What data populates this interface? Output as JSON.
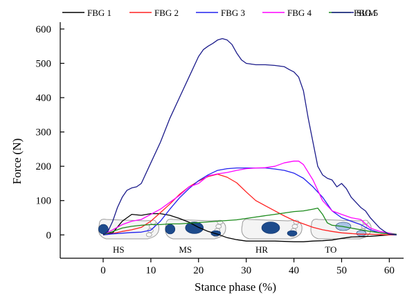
{
  "chart_data": {
    "type": "line",
    "title": "",
    "xlabel": "Stance phase (%)",
    "ylabel": "Force (N)",
    "xlim": [
      -9,
      63
    ],
    "ylim": [
      -68,
      620
    ],
    "xticks": [
      0,
      10,
      20,
      30,
      40,
      50,
      60
    ],
    "yticks": [
      0,
      100,
      200,
      300,
      400,
      500,
      600
    ],
    "grid": false,
    "legend_position": "top",
    "series": [
      {
        "name": "FBG 1",
        "color": "#000000",
        "points": [
          [
            0,
            2
          ],
          [
            2,
            6
          ],
          [
            4,
            40
          ],
          [
            6,
            60
          ],
          [
            8,
            57
          ],
          [
            10,
            62
          ],
          [
            12,
            62
          ],
          [
            14,
            57
          ],
          [
            16,
            48
          ],
          [
            18,
            37
          ],
          [
            20,
            22
          ],
          [
            22,
            10
          ],
          [
            24,
            2
          ],
          [
            26,
            -8
          ],
          [
            28,
            -14
          ],
          [
            30,
            -18
          ],
          [
            32,
            -18
          ],
          [
            34,
            -18
          ],
          [
            36,
            -18
          ],
          [
            38,
            -19
          ],
          [
            40,
            -20
          ],
          [
            42,
            -20
          ],
          [
            44,
            -18
          ],
          [
            46,
            -17
          ],
          [
            48,
            -15
          ],
          [
            50,
            -10
          ],
          [
            52,
            -6
          ],
          [
            54,
            -5
          ],
          [
            56,
            -4
          ],
          [
            58,
            -2
          ],
          [
            60,
            0
          ],
          [
            61.5,
            0
          ]
        ]
      },
      {
        "name": "FBG 2",
        "color": "#ff2020",
        "points": [
          [
            0,
            0
          ],
          [
            2,
            4
          ],
          [
            4,
            10
          ],
          [
            6,
            15
          ],
          [
            8,
            22
          ],
          [
            10,
            40
          ],
          [
            12,
            65
          ],
          [
            14,
            90
          ],
          [
            16,
            118
          ],
          [
            18,
            140
          ],
          [
            20,
            157
          ],
          [
            22,
            170
          ],
          [
            24,
            177
          ],
          [
            26,
            168
          ],
          [
            28,
            152
          ],
          [
            30,
            125
          ],
          [
            32,
            100
          ],
          [
            34,
            85
          ],
          [
            36,
            70
          ],
          [
            38,
            55
          ],
          [
            40,
            42
          ],
          [
            42,
            32
          ],
          [
            44,
            22
          ],
          [
            46,
            15
          ],
          [
            48,
            10
          ],
          [
            50,
            6
          ],
          [
            52,
            4
          ],
          [
            54,
            2
          ],
          [
            56,
            2
          ],
          [
            58,
            1
          ],
          [
            60,
            0
          ],
          [
            61.5,
            0
          ]
        ]
      },
      {
        "name": "FBG 3",
        "color": "#2020ee",
        "points": [
          [
            0,
            0
          ],
          [
            2,
            3
          ],
          [
            4,
            5
          ],
          [
            6,
            7
          ],
          [
            8,
            8
          ],
          [
            10,
            14
          ],
          [
            12,
            40
          ],
          [
            14,
            75
          ],
          [
            16,
            108
          ],
          [
            18,
            135
          ],
          [
            20,
            158
          ],
          [
            22,
            175
          ],
          [
            24,
            188
          ],
          [
            26,
            193
          ],
          [
            28,
            195
          ],
          [
            30,
            195
          ],
          [
            32,
            195
          ],
          [
            34,
            195
          ],
          [
            36,
            192
          ],
          [
            38,
            188
          ],
          [
            40,
            180
          ],
          [
            42,
            165
          ],
          [
            44,
            140
          ],
          [
            46,
            110
          ],
          [
            48,
            70
          ],
          [
            50,
            50
          ],
          [
            52,
            40
          ],
          [
            54,
            30
          ],
          [
            56,
            15
          ],
          [
            58,
            6
          ],
          [
            60,
            3
          ],
          [
            61.5,
            0
          ]
        ]
      },
      {
        "name": "FBG 4",
        "color": "#ff00ff",
        "points": [
          [
            0,
            0
          ],
          [
            2,
            15
          ],
          [
            4,
            30
          ],
          [
            6,
            40
          ],
          [
            8,
            45
          ],
          [
            10,
            60
          ],
          [
            12,
            75
          ],
          [
            14,
            95
          ],
          [
            16,
            115
          ],
          [
            18,
            140
          ],
          [
            20,
            150
          ],
          [
            22,
            172
          ],
          [
            24,
            178
          ],
          [
            26,
            182
          ],
          [
            28,
            188
          ],
          [
            30,
            193
          ],
          [
            32,
            195
          ],
          [
            34,
            196
          ],
          [
            36,
            200
          ],
          [
            38,
            210
          ],
          [
            40,
            215
          ],
          [
            41,
            215
          ],
          [
            42,
            205
          ],
          [
            44,
            160
          ],
          [
            46,
            100
          ],
          [
            48,
            70
          ],
          [
            50,
            60
          ],
          [
            52,
            50
          ],
          [
            54,
            45
          ],
          [
            56,
            20
          ],
          [
            58,
            10
          ],
          [
            60,
            5
          ],
          [
            61.5,
            2
          ]
        ]
      },
      {
        "name": "FBG 5",
        "color": "#1a8a1a",
        "points": [
          [
            0,
            0
          ],
          [
            2,
            10
          ],
          [
            4,
            20
          ],
          [
            6,
            25
          ],
          [
            8,
            28
          ],
          [
            10,
            30
          ],
          [
            12,
            30
          ],
          [
            14,
            32
          ],
          [
            16,
            32
          ],
          [
            18,
            34
          ],
          [
            20,
            36
          ],
          [
            22,
            38
          ],
          [
            24,
            40
          ],
          [
            26,
            42
          ],
          [
            28,
            44
          ],
          [
            30,
            48
          ],
          [
            32,
            52
          ],
          [
            34,
            56
          ],
          [
            36,
            60
          ],
          [
            38,
            64
          ],
          [
            40,
            68
          ],
          [
            42,
            70
          ],
          [
            44,
            75
          ],
          [
            45,
            78
          ],
          [
            46,
            60
          ],
          [
            47,
            35
          ],
          [
            48,
            28
          ],
          [
            50,
            25
          ],
          [
            52,
            20
          ],
          [
            54,
            15
          ],
          [
            56,
            10
          ],
          [
            58,
            6
          ],
          [
            60,
            3
          ],
          [
            61.5,
            2
          ]
        ]
      },
      {
        "name": "SUM",
        "color": "#1a1a8a",
        "points": [
          [
            0,
            0
          ],
          [
            1,
            10
          ],
          [
            2,
            40
          ],
          [
            3,
            80
          ],
          [
            4,
            110
          ],
          [
            5,
            130
          ],
          [
            6,
            137
          ],
          [
            7,
            140
          ],
          [
            8,
            150
          ],
          [
            10,
            210
          ],
          [
            12,
            270
          ],
          [
            14,
            340
          ],
          [
            16,
            400
          ],
          [
            18,
            460
          ],
          [
            20,
            520
          ],
          [
            21,
            540
          ],
          [
            22,
            550
          ],
          [
            23,
            558
          ],
          [
            24,
            568
          ],
          [
            25,
            572
          ],
          [
            26,
            568
          ],
          [
            27,
            555
          ],
          [
            28,
            530
          ],
          [
            29,
            510
          ],
          [
            30,
            500
          ],
          [
            32,
            496
          ],
          [
            34,
            496
          ],
          [
            36,
            494
          ],
          [
            38,
            490
          ],
          [
            39,
            482
          ],
          [
            40,
            475
          ],
          [
            41,
            460
          ],
          [
            42,
            420
          ],
          [
            43,
            340
          ],
          [
            44,
            270
          ],
          [
            45,
            200
          ],
          [
            46,
            175
          ],
          [
            47,
            165
          ],
          [
            48,
            160
          ],
          [
            49,
            140
          ],
          [
            50,
            150
          ],
          [
            51,
            135
          ],
          [
            52,
            110
          ],
          [
            53,
            95
          ],
          [
            54,
            80
          ],
          [
            55,
            70
          ],
          [
            56,
            50
          ],
          [
            57,
            35
          ],
          [
            58,
            20
          ],
          [
            59,
            10
          ],
          [
            60,
            2
          ],
          [
            61.5,
            0
          ]
        ]
      }
    ],
    "phase_labels": [
      "HS",
      "MS",
      "HR",
      "TO"
    ],
    "phase_positions": [
      1.5,
      15.5,
      31.5,
      46.0
    ]
  }
}
